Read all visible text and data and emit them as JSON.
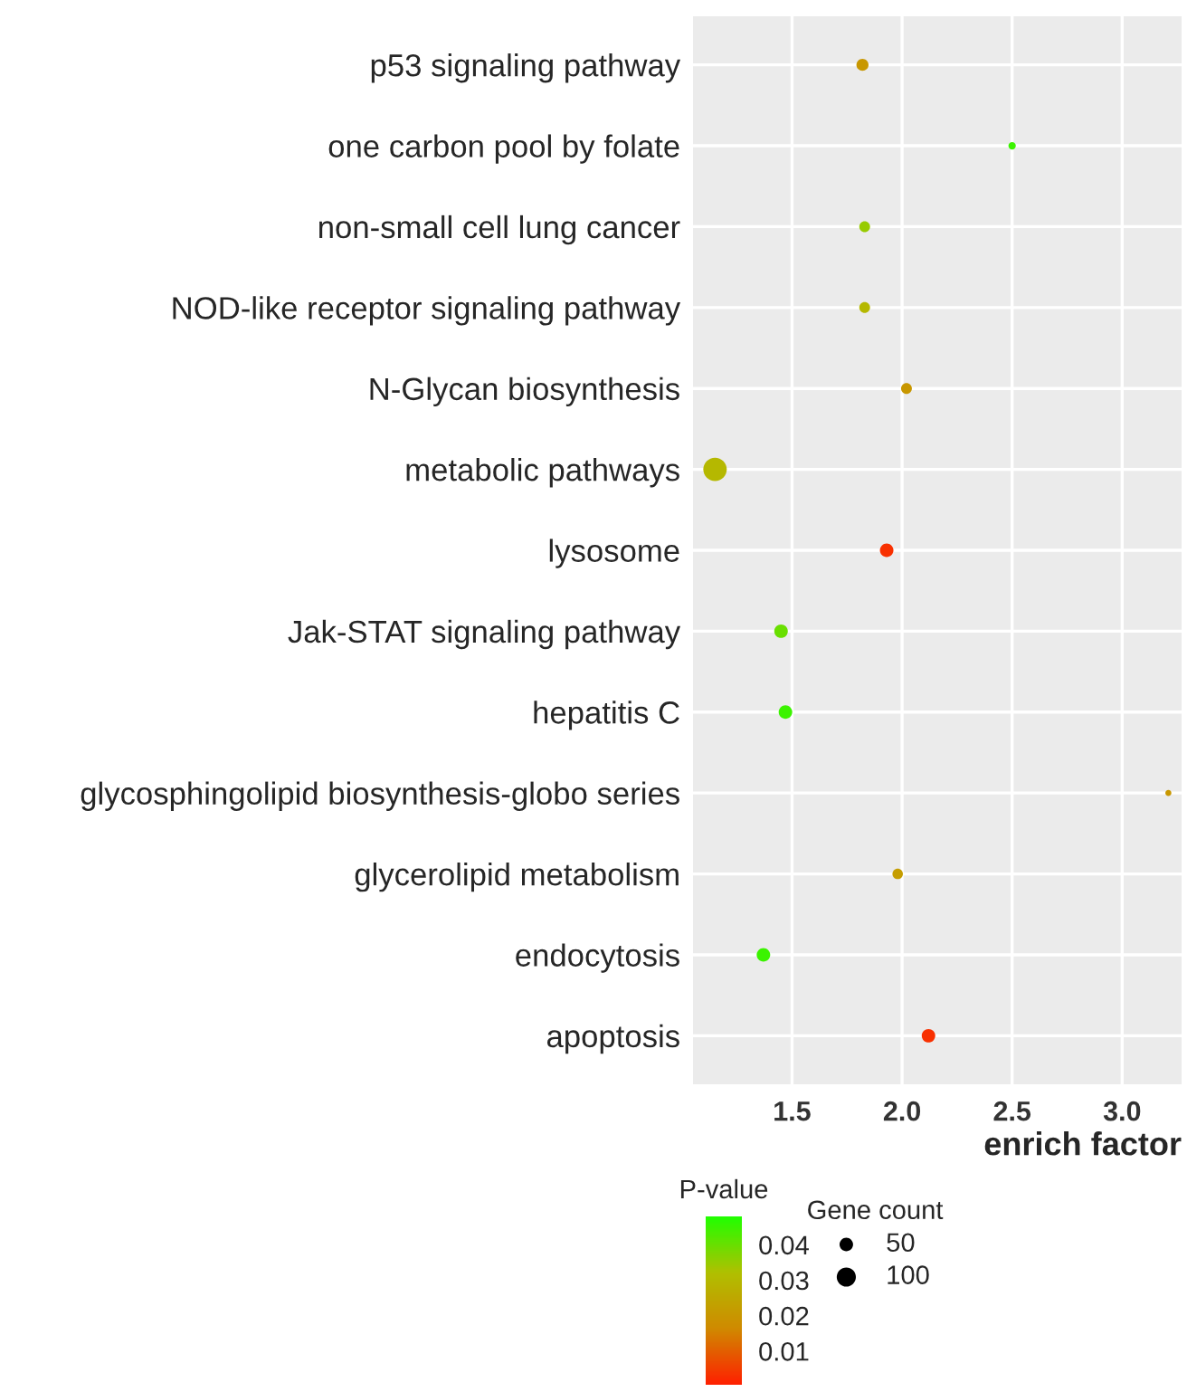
{
  "chart_data": {
    "type": "bubble",
    "xlabel": "enrich factor",
    "clabel": "P-value",
    "legend_title": "Gene count",
    "categories": [
      "p53 signaling pathway",
      "one carbon pool by folate",
      "non-small cell lung cancer",
      "NOD-like receptor signaling pathway",
      "N-Glycan biosynthesis",
      "metabolic pathways",
      "lysosome",
      "Jak-STAT signaling pathway",
      "hepatitis C",
      "glycosphingolipid biosynthesis-globo series",
      "glycerolipid metabolism",
      "endocytosis",
      "apoptosis"
    ],
    "orientation": "horizontal",
    "values": [
      1.82,
      2.5,
      1.83,
      1.83,
      2.02,
      1.15,
      1.93,
      1.45,
      1.47,
      3.21,
      1.98,
      1.37,
      2.12
    ],
    "sizes": [
      40,
      15,
      32,
      32,
      32,
      150,
      50,
      50,
      50,
      10,
      30,
      50,
      50
    ],
    "size_legend": [
      50,
      100
    ],
    "cvalues": [
      0.02,
      0.045,
      0.035,
      0.03,
      0.02,
      0.03,
      0.003,
      0.04,
      0.045,
      0.02,
      0.022,
      0.045,
      0.003
    ],
    "clim": [
      0.0005,
      0.048
    ],
    "cticks": [
      0.01,
      0.02,
      0.03,
      0.04
    ],
    "xlim": [
      1.05,
      3.27
    ],
    "xticks": [
      1.5,
      {
        "value": 2,
        "label": "2.0"
      },
      2.5,
      {
        "value": 3,
        "label": "3.0"
      }
    ],
    "grid": true
  }
}
